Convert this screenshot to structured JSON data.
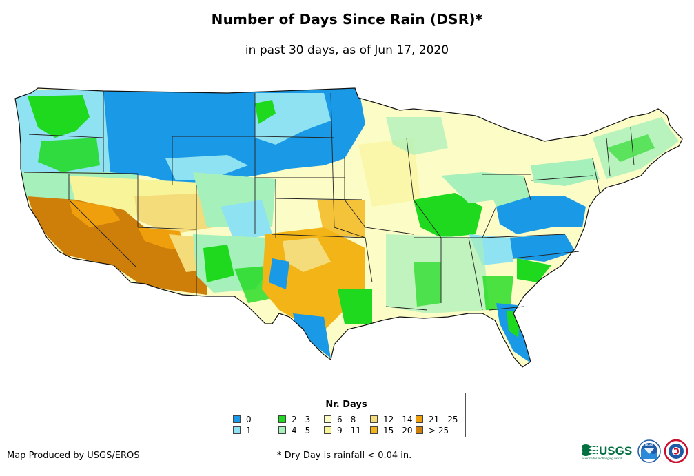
{
  "title": "Number of Days Since Rain (DSR)*",
  "subtitle": "in past 30 days, as of Jun 17, 2020",
  "legend": {
    "title": "Nr. Days",
    "items": [
      {
        "label": "0",
        "color": "#1a9ae6"
      },
      {
        "label": "1",
        "color": "#8fe2f2"
      },
      {
        "label": "2 - 3",
        "color": "#1ed91e"
      },
      {
        "label": "4 - 5",
        "color": "#a6f0bb"
      },
      {
        "label": "6 - 8",
        "color": "#fcfcc6"
      },
      {
        "label": "9 - 11",
        "color": "#f8f49a"
      },
      {
        "label": "12 - 14",
        "color": "#f5dc7a"
      },
      {
        "label": "15 - 20",
        "color": "#f2b417"
      },
      {
        "label": "21 - 25",
        "color": "#ef9f0c"
      },
      {
        "label": "> 25",
        "color": "#cd7f0a"
      }
    ]
  },
  "credit": "Map Produced by USGS/EROS",
  "footnote": "* Dry Day is rainfall < 0.04 in.",
  "logos": {
    "usgs_text": "USGS",
    "usgs_tagline": "science for a changing world",
    "noaa_text": "NOAA"
  }
}
